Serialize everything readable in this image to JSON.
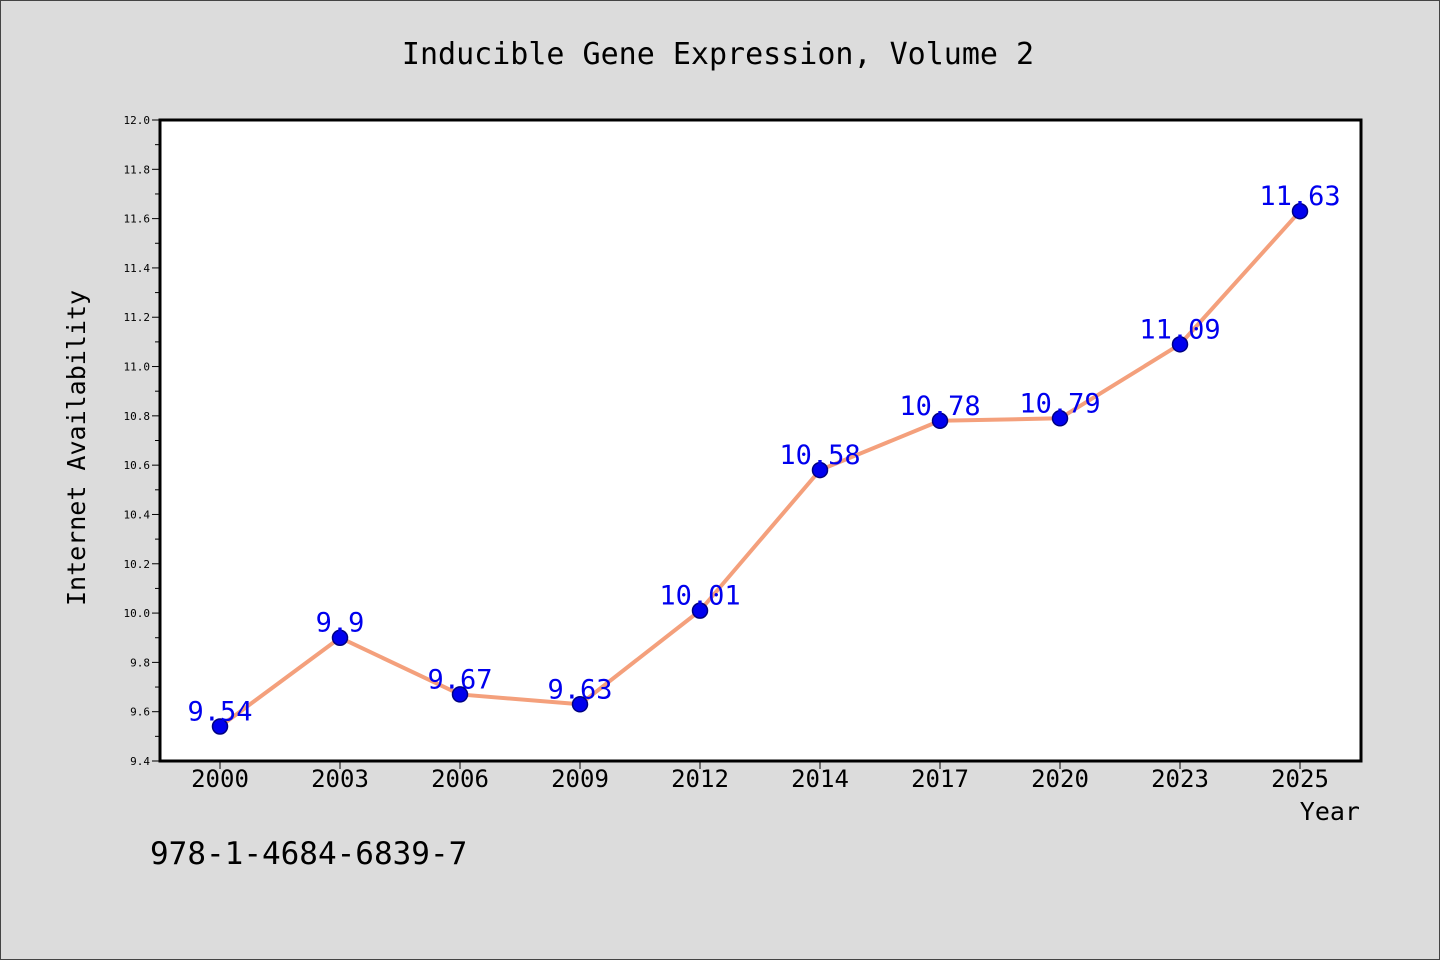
{
  "chart_data": {
    "type": "line",
    "title": "Inducible Gene Expression, Volume 2",
    "xlabel": "Year",
    "ylabel": "Internet Availability",
    "categories": [
      "2000",
      "2003",
      "2006",
      "2009",
      "2012",
      "2014",
      "2017",
      "2020",
      "2023",
      "2025"
    ],
    "series": [
      {
        "values": [
          9.54,
          9.9,
          9.67,
          9.63,
          10.01,
          10.58,
          10.78,
          10.79,
          11.09,
          11.63
        ],
        "data_labels": [
          "9.54",
          "9.9",
          "9.67",
          "9.63",
          "10.01",
          "10.58",
          "10.78",
          "10.79",
          "11.09",
          "11.63"
        ]
      }
    ],
    "ylim": [
      9.4,
      12.0
    ],
    "yticks": [
      "9.4",
      "9.6",
      "9.8",
      "10.0",
      "10.2",
      "10.4",
      "10.6",
      "10.8",
      "11.0",
      "11.2",
      "11.4",
      "11.6",
      "11.8",
      "12.0"
    ],
    "grid": false,
    "legend": "none",
    "colors": {
      "line": "#f4a07c",
      "marker": "#0000ee",
      "marker_edge": "#000080",
      "label": "#0000ee",
      "background": "#dcdcdc",
      "plot_background": "#ffffff"
    }
  },
  "footer": {
    "isbn": "978-1-4684-6839-7"
  }
}
